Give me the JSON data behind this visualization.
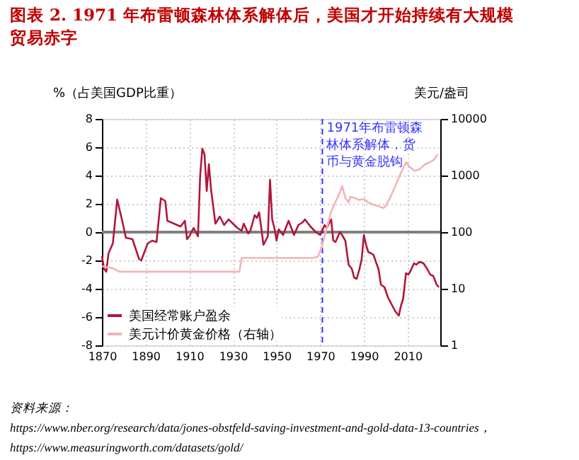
{
  "chart_data": {
    "type": "line",
    "title": "图表 2. 1971 年布雷顿森林体系解体后，美国才开始持续有大规模贸易赤字",
    "ylabel": "%（占美国GDP比重）",
    "y2label": "美元/盎司",
    "xlim": [
      1870,
      2025
    ],
    "xticks": [
      1870,
      1890,
      1910,
      1930,
      1950,
      1970,
      1990,
      2010
    ],
    "ylim": [
      -8,
      8
    ],
    "yticks": [
      -8,
      -6,
      -4,
      -2,
      0,
      2,
      4,
      6,
      8
    ],
    "y2lim": [
      1,
      10000
    ],
    "y2ticks": [
      1,
      10,
      100,
      1000,
      10000
    ],
    "log": "y2",
    "grid": true,
    "legend": "bottom left",
    "marker": "none",
    "line_style": "solid",
    "series": [
      {
        "name": "美国经常账户盈余",
        "color": "#b0173a",
        "x": [
          1870,
          1871,
          1872,
          1873,
          1875,
          1877,
          1879,
          1881,
          1884,
          1887,
          1888,
          1891,
          1893,
          1895,
          1897,
          1899,
          1900,
          1903,
          1906,
          1908,
          1909,
          1910,
          1912,
          1914,
          1915,
          1916,
          1917,
          1918,
          1919,
          1920,
          1922,
          1924,
          1926,
          1928,
          1930,
          1932,
          1934,
          1935,
          1937,
          1938,
          1940,
          1941,
          1942,
          1943,
          1944,
          1946,
          1947,
          1948,
          1949,
          1950,
          1951,
          1953,
          1955.5,
          1958,
          1960,
          1962,
          1963,
          1965.5,
          1968,
          1970,
          1972,
          1973,
          1975,
          1976,
          1977,
          1979,
          1980,
          1981.5,
          1983,
          1984.5,
          1985.5,
          1986.7,
          1988,
          1989,
          1990,
          1991,
          1992,
          1993.3,
          1994.4,
          1995.5,
          1996.7,
          1997.8,
          1999.5,
          2001,
          2002.7,
          2004.4,
          2006,
          2007,
          2008,
          2009.3,
          2010.4,
          2011.5,
          2013,
          2014,
          2015.5,
          2017.3,
          2019,
          2020.4,
          2021.8,
          2023.3,
          2024.4
        ],
        "values": [
          -1.7,
          -2.6,
          -2.8,
          -1.5,
          -0.8,
          2.3,
          1.0,
          -0.4,
          -0.5,
          -1.9,
          -2.0,
          -0.8,
          -0.6,
          -0.7,
          2.4,
          2.2,
          0.8,
          0.6,
          0.4,
          0.8,
          -0.5,
          -0.3,
          0.3,
          -0.3,
          4.0,
          5.9,
          5.5,
          2.9,
          4.8,
          3.0,
          0.6,
          1.1,
          0.5,
          0.9,
          0.6,
          0.3,
          0.1,
          0.6,
          -0.1,
          0.1,
          1.2,
          1.0,
          1.4,
          0.3,
          -0.9,
          -0.3,
          3.7,
          0.9,
          0.3,
          -0.6,
          0.2,
          -0.2,
          0.8,
          -0.2,
          0.5,
          0.7,
          0.9,
          0.4,
          0.0,
          -0.2,
          0.5,
          0.3,
          0.9,
          -0.6,
          -0.7,
          0.0,
          -0.2,
          -0.6,
          -2.3,
          -2.6,
          -3.2,
          -3.3,
          -2.6,
          -1.9,
          -0.2,
          -0.9,
          -1.4,
          -1.5,
          -1.6,
          -2.1,
          -2.6,
          -3.7,
          -3.9,
          -4.6,
          -5.1,
          -5.6,
          -5.9,
          -5.2,
          -4.7,
          -2.9,
          -3.0,
          -2.7,
          -2.2,
          -2.3,
          -2.1,
          -2.2,
          -2.6,
          -3.0,
          -3.1,
          -3.7,
          -3.9
        ]
      },
      {
        "name": "美元计价黄金价格（右轴）",
        "color": "#f4b3b6",
        "axis": "y2",
        "x": [
          1870,
          1872,
          1875,
          1878,
          1933,
          1934,
          1966.7,
          1969,
          1970.7,
          1972,
          1973,
          1975,
          1979,
          1980,
          1981.5,
          1983,
          1983.8,
          1985.5,
          1987.7,
          1990,
          1992,
          1994.4,
          1996.7,
          1999,
          2000,
          2002,
          2004.4,
          2006.2,
          2007.8,
          2009.3,
          2011,
          2013.3,
          2015.5,
          2017.8,
          2020,
          2022,
          2023.8
        ],
        "values": [
          25,
          24,
          23,
          20,
          20,
          35,
          35,
          37,
          54,
          87,
          117,
          230,
          500,
          650,
          405,
          335,
          420,
          405,
          370,
          385,
          335,
          305,
          287,
          266,
          290,
          405,
          650,
          960,
          1290,
          1710,
          1410,
          1210,
          1290,
          1550,
          1710,
          1880,
          2370
        ]
      }
    ],
    "ref_lines": [
      {
        "axis": "y",
        "value": 0,
        "color": "#808080",
        "line_style": "solid"
      },
      {
        "axis": "x",
        "value": 1971,
        "label": "1971年布雷顿森林体系解体，货币与黄金脱钩",
        "color": "#3333ff",
        "line_style": "dashed"
      }
    ],
    "annotations": [
      "资料来源：",
      "https://www.nber.org/research/data/jones-obstfeld-saving-investment-and-gold-data-13-countries，",
      "https://www.measuringworth.com/datasets/gold/"
    ]
  }
}
